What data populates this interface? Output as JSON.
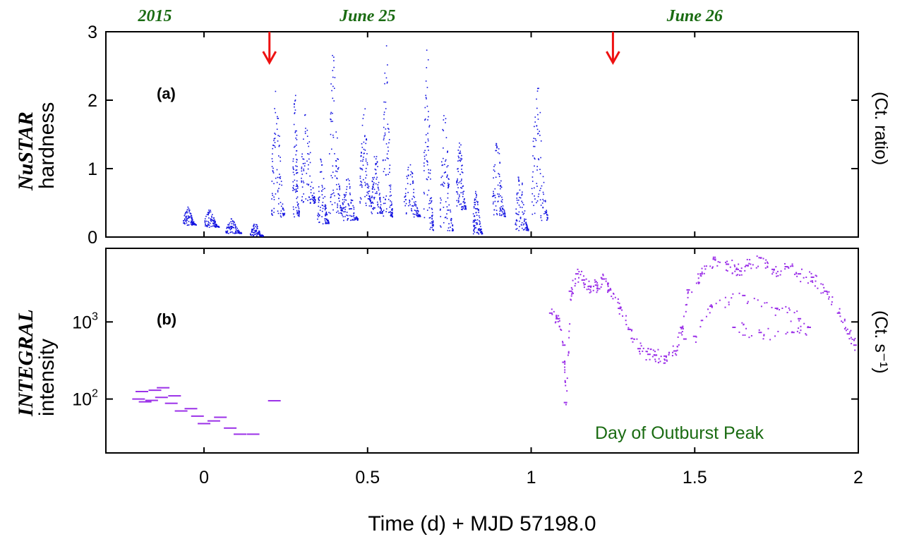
{
  "chart_data": [
    {
      "type": "scatter",
      "panel": "(a)",
      "ylabel_main": "NuSTAR",
      "ylabel_sub": "hardness",
      "unit_label": "(Ct.  ratio)",
      "ylim": [
        0,
        3
      ],
      "yticks": [
        0,
        1,
        2,
        3
      ],
      "ytick_labels": [
        "0",
        "1",
        "2",
        "3"
      ],
      "color": "#1010e0",
      "segments": [
        {
          "x": [
            -0.065,
            -0.025
          ],
          "y": [
            0.18,
            0.45
          ]
        },
        {
          "x": [
            0.0,
            0.045
          ],
          "y": [
            0.15,
            0.42
          ]
        },
        {
          "x": [
            0.065,
            0.115
          ],
          "y": [
            0.06,
            0.28
          ]
        },
        {
          "x": [
            0.14,
            0.18
          ],
          "y": [
            0.02,
            0.22
          ]
        },
        {
          "x": [
            0.205,
            0.245
          ],
          "y": [
            0.3,
            2.4
          ]
        },
        {
          "x": [
            0.27,
            0.29
          ],
          "y": [
            0.3,
            2.3
          ]
        },
        {
          "x": [
            0.295,
            0.34
          ],
          "y": [
            0.5,
            1.95
          ]
        },
        {
          "x": [
            0.345,
            0.38
          ],
          "y": [
            0.2,
            1.2
          ]
        },
        {
          "x": [
            0.38,
            0.42
          ],
          "y": [
            0.35,
            2.85
          ]
        },
        {
          "x": [
            0.42,
            0.47
          ],
          "y": [
            0.25,
            0.9
          ]
        },
        {
          "x": [
            0.475,
            0.51
          ],
          "y": [
            0.45,
            2.0
          ]
        },
        {
          "x": [
            0.51,
            0.545
          ],
          "y": [
            0.35,
            1.3
          ]
        },
        {
          "x": [
            0.545,
            0.575
          ],
          "y": [
            0.3,
            2.9
          ]
        },
        {
          "x": [
            0.61,
            0.66
          ],
          "y": [
            0.3,
            1.1
          ]
        },
        {
          "x": [
            0.67,
            0.7
          ],
          "y": [
            0.1,
            2.9
          ]
        },
        {
          "x": [
            0.72,
            0.76
          ],
          "y": [
            0.1,
            1.9
          ]
        },
        {
          "x": [
            0.77,
            0.8
          ],
          "y": [
            0.4,
            1.5
          ]
        },
        {
          "x": [
            0.82,
            0.85
          ],
          "y": [
            0.05,
            0.7
          ]
        },
        {
          "x": [
            0.88,
            0.92
          ],
          "y": [
            0.3,
            1.5
          ]
        },
        {
          "x": [
            0.95,
            0.99
          ],
          "y": [
            0.1,
            1.0
          ]
        },
        {
          "x": [
            1.0,
            1.05
          ],
          "y": [
            0.25,
            2.3
          ]
        }
      ],
      "arrows_x": [
        0.2,
        1.25
      ],
      "arrow_color": "#ee1111"
    },
    {
      "type": "scatter",
      "panel": "(b)",
      "ylabel_main": "INTEGRAL",
      "ylabel_sub": "intensity",
      "unit_label": "(Ct.  s⁻¹)",
      "yscale": "log",
      "ylim": [
        20,
        9000
      ],
      "yticks": [
        100,
        1000
      ],
      "ytick_base": "10",
      "ytick_exponents": [
        "2",
        "3"
      ],
      "color": "#9b30e8",
      "points": [
        [
          -0.2,
          100
        ],
        [
          -0.18,
          92
        ],
        [
          -0.16,
          96
        ],
        [
          -0.13,
          105
        ],
        [
          -0.1,
          88
        ],
        [
          -0.19,
          125
        ],
        [
          -0.15,
          130
        ],
        [
          -0.125,
          140
        ],
        [
          -0.09,
          110
        ],
        [
          -0.07,
          70
        ],
        [
          -0.04,
          75
        ],
        [
          -0.02,
          60
        ],
        [
          0.0,
          48
        ],
        [
          0.03,
          52
        ],
        [
          0.05,
          58
        ],
        [
          0.08,
          42
        ],
        [
          0.11,
          35
        ],
        [
          0.15,
          35
        ],
        [
          0.215,
          95
        ],
        [
          1.06,
          1300
        ],
        [
          1.08,
          1100
        ],
        [
          1.1,
          500
        ],
        [
          1.1,
          300
        ],
        [
          1.105,
          90
        ],
        [
          1.12,
          2500
        ],
        [
          1.14,
          4200
        ],
        [
          1.16,
          3500
        ],
        [
          1.18,
          2900
        ],
        [
          1.2,
          3000
        ],
        [
          1.22,
          3600
        ],
        [
          1.24,
          2600
        ],
        [
          1.27,
          1500
        ],
        [
          1.3,
          800
        ],
        [
          1.33,
          450
        ],
        [
          1.36,
          380
        ],
        [
          1.38,
          370
        ],
        [
          1.41,
          360
        ],
        [
          1.44,
          420
        ],
        [
          1.46,
          850
        ],
        [
          1.48,
          2600
        ],
        [
          1.52,
          4200
        ],
        [
          1.56,
          6500
        ],
        [
          1.6,
          5600
        ],
        [
          1.63,
          4800
        ],
        [
          1.66,
          5400
        ],
        [
          1.7,
          6800
        ],
        [
          1.74,
          4800
        ],
        [
          1.78,
          5200
        ],
        [
          1.82,
          4200
        ],
        [
          1.86,
          3800
        ],
        [
          1.9,
          2500
        ],
        [
          1.94,
          1300
        ],
        [
          1.97,
          700
        ],
        [
          1.99,
          500
        ],
        [
          1.62,
          850
        ],
        [
          1.7,
          730
        ],
        [
          1.8,
          730
        ],
        [
          1.85,
          850
        ],
        [
          1.5,
          650
        ],
        [
          1.55,
          1600
        ],
        [
          1.65,
          2200
        ],
        [
          1.75,
          1500
        ],
        [
          1.82,
          1100
        ],
        [
          1.47,
          600
        ]
      ]
    }
  ],
  "xlabel": "Time (d)  +  MJD 57198.0",
  "xlim": [
    -0.3,
    2.0
  ],
  "xticks": [
    0,
    0.5,
    1,
    1.5,
    2
  ],
  "xtick_labels": [
    "0",
    "0.5",
    "1",
    "1.5",
    "2"
  ],
  "top_labels": [
    {
      "text": "2015",
      "x": -0.15
    },
    {
      "text": "June 25",
      "x": 0.5
    },
    {
      "text": "June 26",
      "x": 1.5
    }
  ],
  "annotation": "Day of Outburst Peak",
  "colors": {
    "date_green": "#1a6b12",
    "arrow_red": "#ee1111"
  }
}
